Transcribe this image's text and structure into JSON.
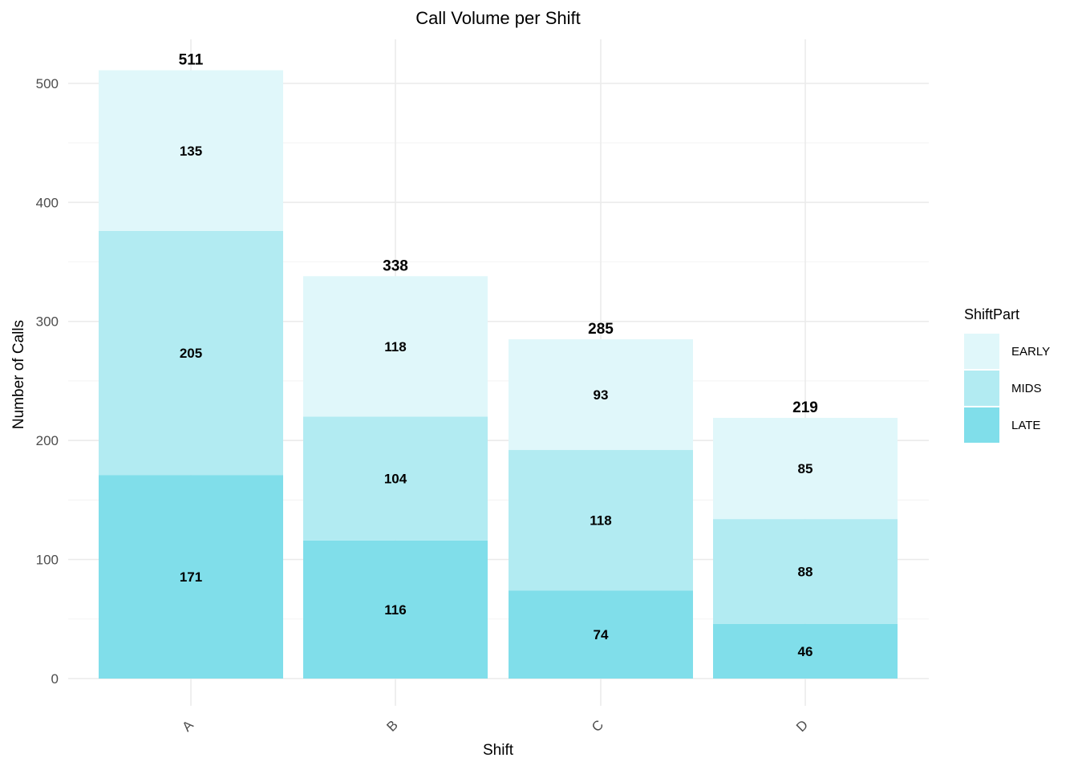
{
  "chart_data": {
    "type": "bar",
    "stacked": true,
    "title": "Call Volume per Shift",
    "xlabel": "Shift",
    "ylabel": "Number of Calls",
    "categories": [
      "A",
      "B",
      "C",
      "D"
    ],
    "series": [
      {
        "name": "LATE",
        "values": [
          171,
          116,
          74,
          46
        ],
        "color": "#80DEEA"
      },
      {
        "name": "MIDS",
        "values": [
          205,
          104,
          118,
          88
        ],
        "color": "#B2EBF2"
      },
      {
        "name": "EARLY",
        "values": [
          135,
          118,
          93,
          85
        ],
        "color": "#E0F7FA"
      }
    ],
    "totals": [
      511,
      338,
      285,
      219
    ],
    "ylim": [
      0,
      530
    ],
    "yticks": [
      0,
      100,
      200,
      300,
      400,
      500
    ],
    "grid": true,
    "x_tick_label_rotation": "45 degrees",
    "legend": {
      "title": "ShiftPart",
      "placement": "right",
      "order": [
        "EARLY",
        "MIDS",
        "LATE"
      ]
    }
  }
}
